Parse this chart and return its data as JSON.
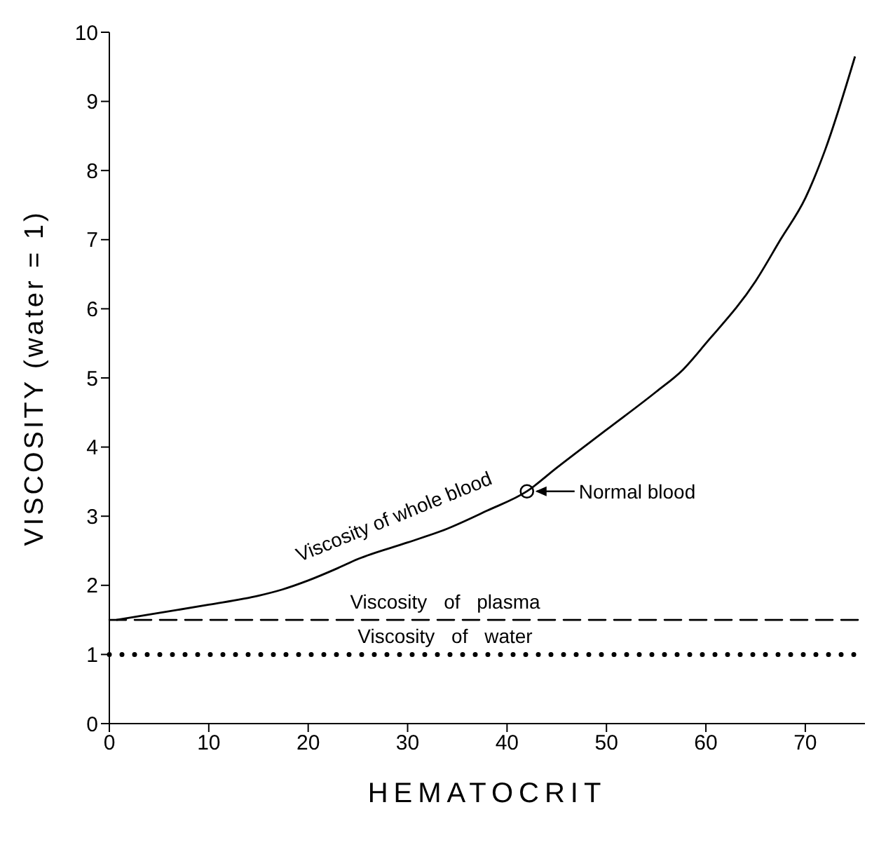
{
  "chart_data": {
    "type": "line",
    "xlabel": "HEMATOCRIT",
    "ylabel": "VISCOSITY   (water = 1)",
    "series": [
      {
        "name": "Viscosity of whole blood",
        "color": "#000000",
        "line_style": "solid",
        "marker": "none",
        "x": [
          0.7,
          5,
          10,
          15,
          17.4,
          20,
          23,
          25,
          30,
          34,
          38,
          42,
          45,
          50,
          55,
          57.7,
          60,
          65,
          67.5,
          70,
          72,
          75
        ],
        "values": [
          1.5,
          1.6,
          1.72,
          1.85,
          1.94,
          2.07,
          2.25,
          2.38,
          2.62,
          2.82,
          3.08,
          3.36,
          3.7,
          4.25,
          4.8,
          5.12,
          5.5,
          6.4,
          7.0,
          7.6,
          8.3,
          9.65
        ]
      },
      {
        "type": "scatter",
        "color": "#000000",
        "marker": "circle",
        "x": [
          42
        ],
        "values": [
          3.36
        ]
      }
    ],
    "ref_lines": [
      {
        "axis": "y",
        "value": 1.5,
        "label": "Viscosity of plasma",
        "line_style": "dashed",
        "color": "#000000"
      },
      {
        "axis": "y",
        "value": 1,
        "label": "Viscosity of water",
        "line_style": "dotted",
        "color": "#000000"
      }
    ],
    "annotations": [
      {
        "text": "Normal blood",
        "x": 42,
        "y": 3.36
      }
    ],
    "xlim": [
      0,
      76
    ],
    "xticks": [
      0,
      10,
      20,
      30,
      40,
      50,
      60,
      70
    ],
    "ylim": [
      0,
      10
    ],
    "yticks": [
      0,
      1,
      2,
      3,
      4,
      5,
      6,
      7,
      8,
      9,
      10
    ],
    "grid": false,
    "legend": false
  }
}
